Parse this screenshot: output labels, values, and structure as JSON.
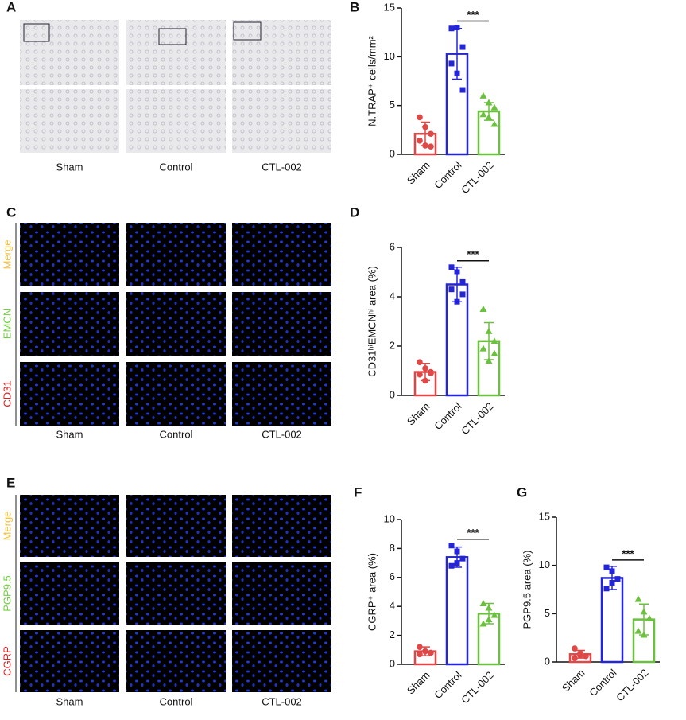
{
  "figure": {
    "letters": [
      "A",
      "B",
      "C",
      "D",
      "E",
      "F",
      "G"
    ],
    "image_panels": [
      {
        "columns": [
          "Sham",
          "Control",
          "CTL-002"
        ]
      },
      {
        "columns": [
          "Sham",
          "Control",
          "CTL-002"
        ],
        "rows": [
          "Merge",
          "EMCN",
          "CD31"
        ]
      },
      {
        "columns": [
          "Sham",
          "Control",
          "CTL-002"
        ],
        "rows": [
          "Merge",
          "PGP9.5",
          "CGRP"
        ]
      }
    ]
  },
  "chart_data": [
    {
      "type": "bar",
      "ylabel": "N.TRAP⁺ cells/mm²",
      "categories": [
        "Sham",
        "Control",
        "CTL-002"
      ],
      "colors": [
        "#e04848",
        "#2424d8",
        "#6cc040"
      ],
      "values": [
        2.1,
        10.3,
        4.4
      ],
      "errors": [
        1.2,
        2.6,
        0.9
      ],
      "points": [
        [
          3.8,
          2.8,
          2.1,
          1.4,
          0.9,
          0.8
        ],
        [
          12.9,
          13.0,
          11.0,
          9.3,
          8.3,
          6.6
        ],
        [
          6.0,
          5.3,
          4.8,
          4.1,
          3.8,
          3.1
        ]
      ],
      "ylim": [
        0,
        15
      ],
      "yticks": [
        0,
        5,
        10,
        15
      ],
      "annotation": "***"
    },
    {
      "type": "bar",
      "ylabel": "CD31ʰⁱEMCNʰⁱ area (%)",
      "categories": [
        "Sham",
        "Control",
        "CTL-002"
      ],
      "colors": [
        "#e04848",
        "#2424d8",
        "#6cc040"
      ],
      "values": [
        0.95,
        4.5,
        2.2
      ],
      "errors": [
        0.35,
        0.7,
        0.75
      ],
      "points": [
        [
          1.35,
          1.1,
          0.95,
          0.85,
          0.6,
          0.9
        ],
        [
          5.2,
          5.0,
          4.6,
          4.3,
          3.8,
          4.1
        ],
        [
          3.5,
          2.6,
          2.2,
          1.9,
          1.4,
          1.7
        ]
      ],
      "ylim": [
        0,
        6
      ],
      "yticks": [
        0,
        2,
        4,
        6
      ],
      "annotation": "***"
    },
    {
      "type": "bar",
      "ylabel": "CGRP⁺ area  (%)",
      "categories": [
        "Sham",
        "Control",
        "CTL-002"
      ],
      "colors": [
        "#e04848",
        "#2424d8",
        "#6cc040"
      ],
      "values": [
        0.9,
        7.4,
        3.5
      ],
      "errors": [
        0.3,
        0.7,
        0.7
      ],
      "points": [
        [
          1.2,
          0.9,
          0.8,
          0.7,
          0.9
        ],
        [
          8.2,
          7.8,
          7.3,
          6.8,
          7.0
        ],
        [
          4.2,
          3.9,
          3.4,
          2.8,
          3.1
        ]
      ],
      "ylim": [
        0,
        10
      ],
      "yticks": [
        0,
        2,
        4,
        6,
        8,
        10
      ],
      "annotation": "***"
    },
    {
      "type": "bar",
      "ylabel": "PGP9.5 area (%)",
      "categories": [
        "Sham",
        "Control",
        "CTL-002"
      ],
      "colors": [
        "#e04848",
        "#2424d8",
        "#6cc040"
      ],
      "values": [
        0.8,
        8.7,
        4.4
      ],
      "errors": [
        0.4,
        1.2,
        1.6
      ],
      "points": [
        [
          1.4,
          0.9,
          0.6,
          0.4,
          0.7
        ],
        [
          9.8,
          9.4,
          8.6,
          7.6,
          8.2
        ],
        [
          6.5,
          5.2,
          4.5,
          3.2,
          2.8
        ]
      ],
      "ylim": [
        0,
        15
      ],
      "yticks": [
        0,
        5,
        10,
        15
      ],
      "annotation": "***"
    }
  ]
}
